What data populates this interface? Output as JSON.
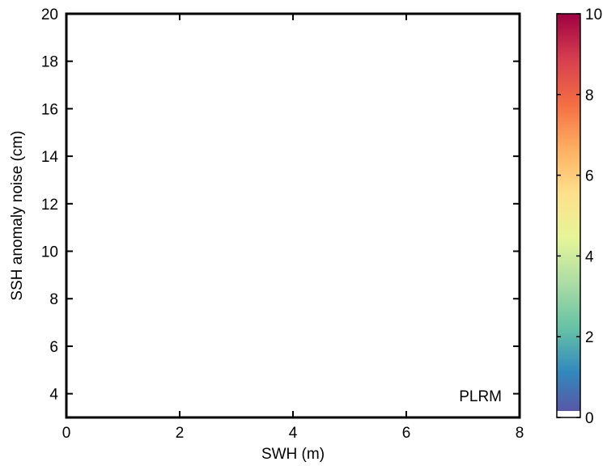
{
  "chart_data": {
    "type": "heatmap",
    "title": "",
    "xlabel": "SWH (m)",
    "ylabel": "SSH anomaly noise (cm)",
    "xlim": [
      0,
      8
    ],
    "ylim": [
      3,
      20
    ],
    "xticks": [
      0,
      2,
      4,
      6,
      8
    ],
    "xtick_labels": [
      "0",
      "2",
      "4",
      "6",
      "8"
    ],
    "yticks": [
      4,
      6,
      8,
      10,
      12,
      14,
      16,
      18,
      20
    ],
    "ytick_labels": [
      "4",
      "6",
      "8",
      "10",
      "12",
      "14",
      "16",
      "18",
      "20"
    ],
    "grid": false,
    "values": [],
    "annotation": "PLRM",
    "annotation_position": "bottom-right",
    "colorbar": {
      "range": [
        0,
        10
      ],
      "ticks": [
        0,
        2,
        4,
        6,
        8,
        10
      ],
      "tick_labels": [
        "0",
        "2",
        "4",
        "6",
        "8",
        "10"
      ],
      "colormap": "spectral (reversed)",
      "lowest_bin_color": "#ffffff"
    }
  },
  "colors": {
    "axes": "#000000",
    "background": "#ffffff",
    "colormap_stops": [
      "#5e4fa2",
      "#3288bd",
      "#66c2a5",
      "#abdda4",
      "#e6f598",
      "#fee08b",
      "#fdae61",
      "#f46d43",
      "#d53e4f",
      "#9e0142"
    ]
  }
}
